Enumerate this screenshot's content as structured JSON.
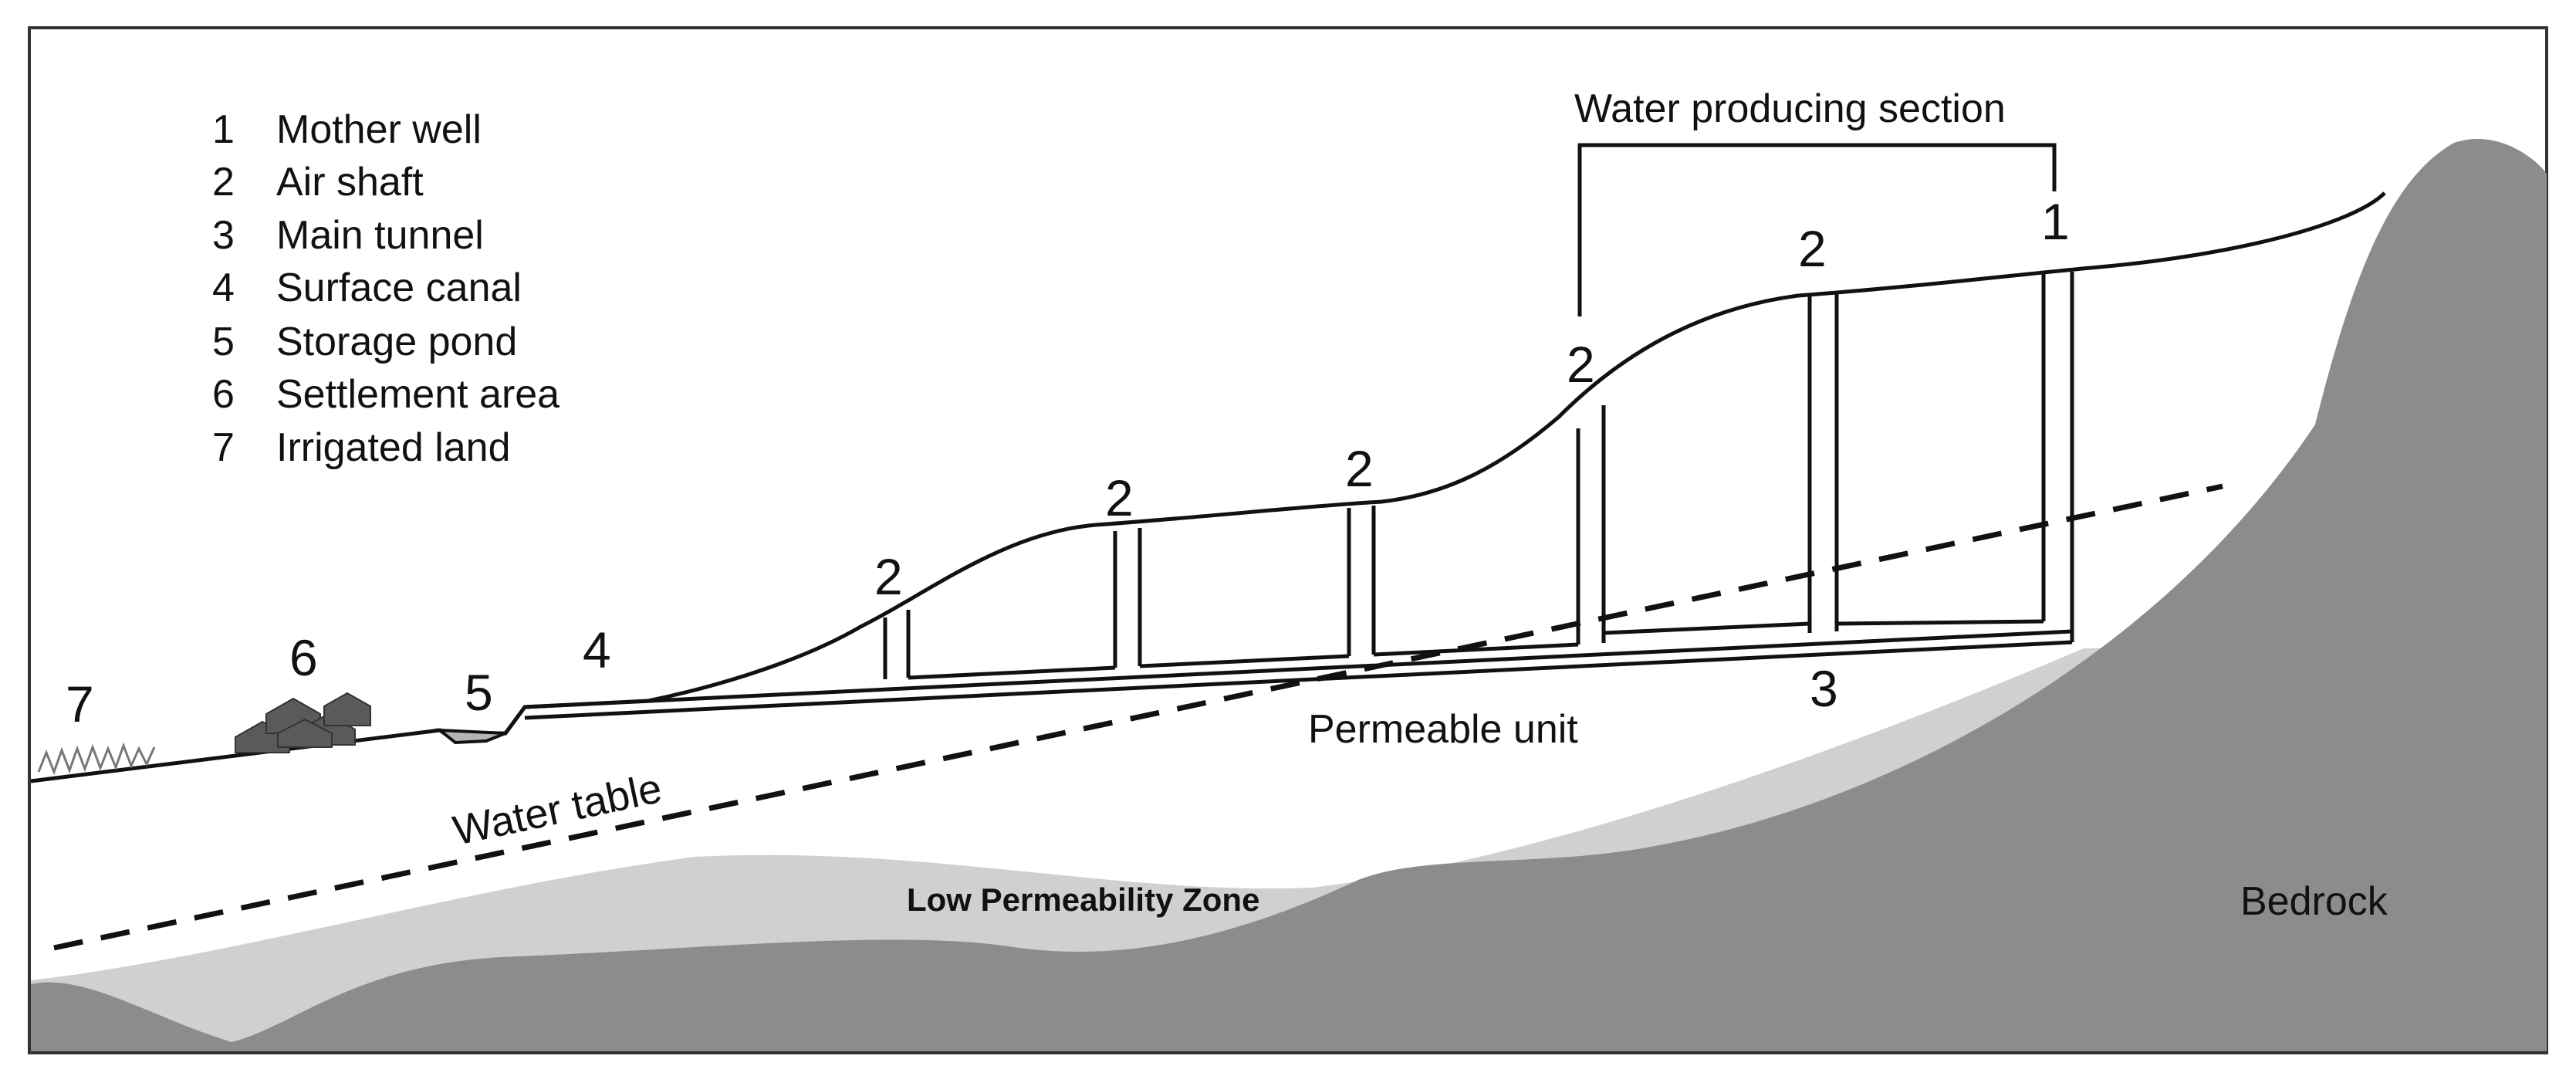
{
  "legend": {
    "items": [
      {
        "num": "1",
        "text": "Mother well"
      },
      {
        "num": "2",
        "text": "Air shaft"
      },
      {
        "num": "3",
        "text": "Main tunnel"
      },
      {
        "num": "4",
        "text": "Surface canal"
      },
      {
        "num": "5",
        "text": "Storage pond"
      },
      {
        "num": "6",
        "text": "Settlement area"
      },
      {
        "num": "7",
        "text": "Irrigated land"
      }
    ]
  },
  "labels": {
    "water_producing_section": "Water producing section",
    "permeable_unit": "Permeable unit",
    "low_permeability_zone": "Low Permeability Zone",
    "bedrock": "Bedrock",
    "water_table": "Water table"
  },
  "markers": {
    "mother_well": "1",
    "air_shaft": "2",
    "main_tunnel": "3",
    "surface_canal": "4",
    "storage_pond": "5",
    "settlement_area": "6",
    "irrigated_land": "7"
  },
  "colors": {
    "bedrock": "#8c8c8c",
    "low_permeability": "#d0d0d0",
    "permeable": "#ffffff",
    "lines": "#111111",
    "pond": "#b5b5b5",
    "houses": "#5a5a5a"
  }
}
